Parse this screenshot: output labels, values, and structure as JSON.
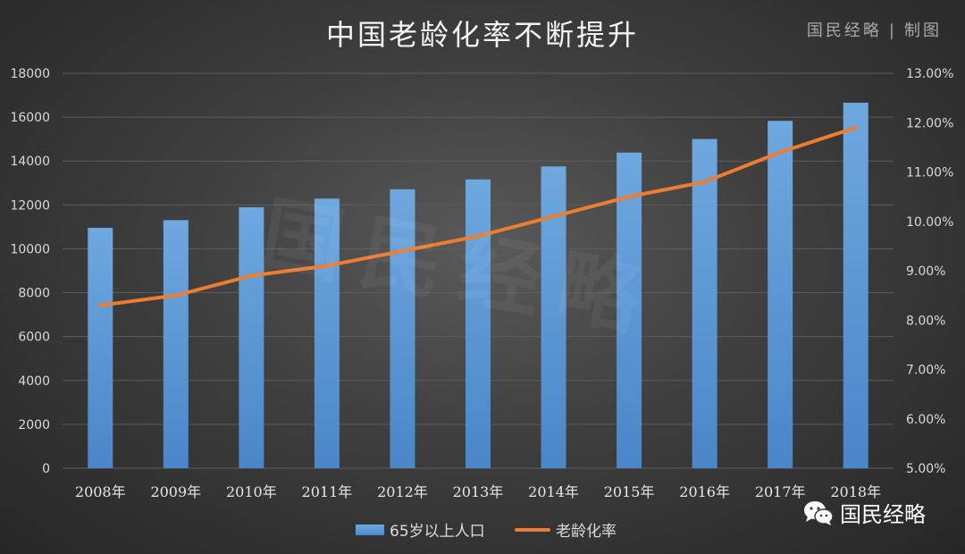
{
  "title": "中国老龄化率不断提升",
  "brand_top": {
    "name": "国民经略",
    "separator": "|",
    "suffix": "制图"
  },
  "watermark": "国民经略",
  "wechat_brand": "国民经略",
  "icons": {
    "wechat": "wechat-icon"
  },
  "colors": {
    "bar": "#5b9bd5",
    "line": "#ed7d31",
    "background": "#3a3a3a",
    "grid": "#5c5c5c"
  },
  "chart_data": {
    "type": "bar",
    "title": "中国老龄化率不断提升",
    "categories": [
      "2008年",
      "2009年",
      "2010年",
      "2011年",
      "2012年",
      "2013年",
      "2014年",
      "2015年",
      "2016年",
      "2017年",
      "2018年"
    ],
    "series": [
      {
        "name": "65岁以上人口",
        "type": "bar",
        "axis": "left",
        "values": [
          10956,
          11307,
          11894,
          12288,
          12714,
          13161,
          13755,
          14386,
          15003,
          15831,
          16658
        ]
      },
      {
        "name": "老龄化率",
        "type": "line",
        "axis": "right",
        "values": [
          8.3,
          8.5,
          8.9,
          9.1,
          9.4,
          9.7,
          10.1,
          10.5,
          10.8,
          11.4,
          11.9
        ]
      }
    ],
    "y_left": {
      "min": 0,
      "max": 18000,
      "step": 2000,
      "ticks": [
        "0",
        "2000",
        "4000",
        "6000",
        "8000",
        "10000",
        "12000",
        "14000",
        "16000",
        "18000"
      ]
    },
    "y_right": {
      "min": 5,
      "max": 13,
      "step": 1,
      "ticks": [
        "5.00%",
        "6.00%",
        "7.00%",
        "8.00%",
        "9.00%",
        "10.00%",
        "11.00%",
        "12.00%",
        "13.00%"
      ]
    },
    "grid": true,
    "legend_position": "bottom"
  }
}
